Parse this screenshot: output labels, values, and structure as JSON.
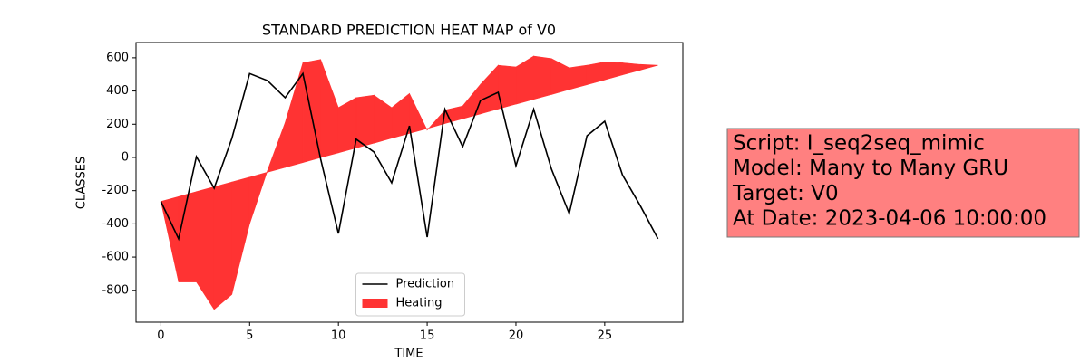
{
  "chart_data": {
    "type": "line",
    "title": "STANDARD PREDICTION HEAT MAP of V0",
    "x_label": "TIME",
    "y_label": "CLASSES",
    "x": [
      0,
      1,
      2,
      3,
      4,
      5,
      6,
      7,
      8,
      9,
      10,
      11,
      12,
      13,
      14,
      15,
      16,
      17,
      18,
      19,
      20,
      21,
      22,
      23,
      24,
      25,
      26,
      27,
      28
    ],
    "series": [
      {
        "name": "Prediction",
        "color": "#000000",
        "values": [
          -265,
          -490,
          5,
          -185,
          115,
          505,
          463,
          360,
          505,
          -10,
          -458,
          110,
          33,
          -153,
          190,
          -480,
          290,
          65,
          343,
          392,
          -50,
          290,
          -70,
          -338,
          130,
          218,
          -105,
          -290,
          -490
        ]
      },
      {
        "name": "Heating",
        "color": "#ff3333",
        "values": [
          -265,
          -750,
          -750,
          -915,
          -825,
          -400,
          -80,
          210,
          570,
          590,
          300,
          360,
          375,
          300,
          385,
          165,
          285,
          310,
          440,
          555,
          545,
          610,
          595,
          540,
          555,
          575,
          570,
          560,
          555
        ],
        "values2": [
          -265,
          -236,
          -206,
          -177,
          -148,
          -119,
          -89,
          -60,
          -31,
          -1,
          28,
          57,
          86,
          116,
          145,
          174,
          204,
          233,
          262,
          292,
          321,
          350,
          379,
          409,
          438,
          467,
          497,
          526,
          555
        ]
      }
    ],
    "xlim": [
      -1.4,
      29.4
    ],
    "xticks": [
      0,
      5,
      10,
      15,
      20,
      25
    ],
    "ylim": [
      -992,
      692
    ],
    "yticks": [
      -800,
      -600,
      -400,
      -200,
      0,
      200,
      400,
      600
    ],
    "legend": "lower center",
    "annotation": [
      "Script: I_seq2seq_mimic",
      "Model: Many to Many GRU",
      "Target: V0",
      "At Date: 2023-04-06 10:00:00"
    ]
  }
}
